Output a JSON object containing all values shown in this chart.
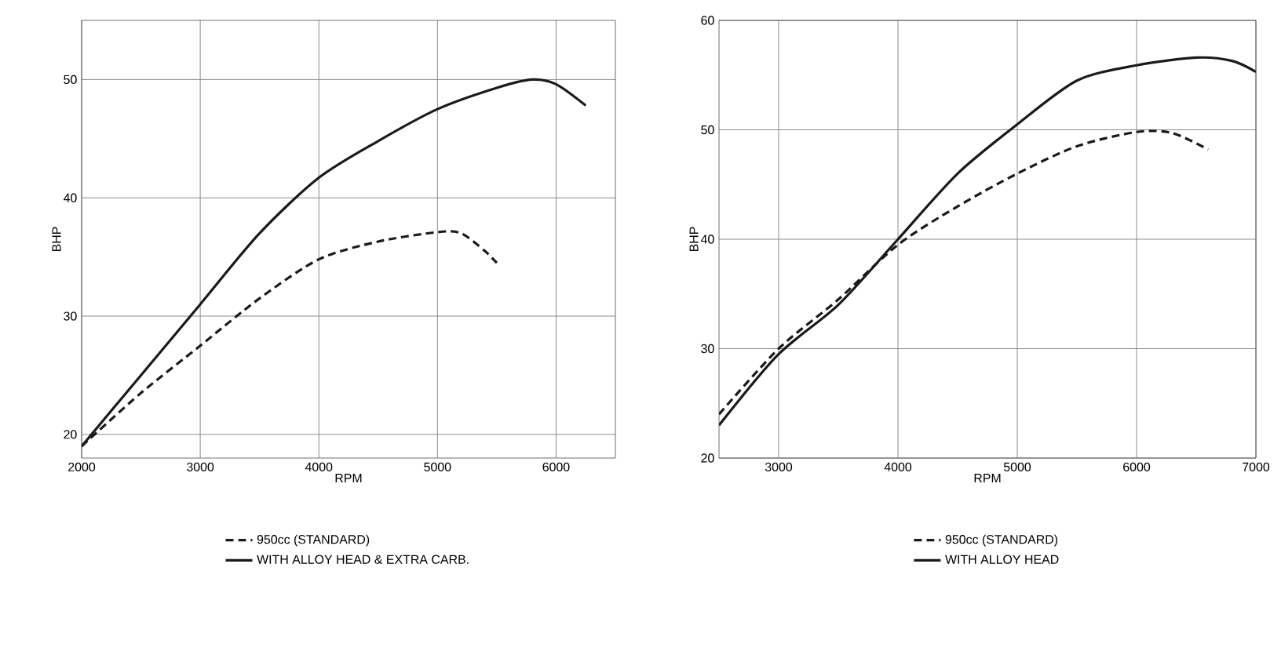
{
  "chart_data": [
    {
      "type": "line",
      "xlabel": "RPM",
      "ylabel": "BHP",
      "xlim": [
        2000,
        6500
      ],
      "ylim": [
        18,
        55
      ],
      "xticks": [
        2000,
        3000,
        4000,
        5000,
        6000
      ],
      "yticks": [
        20,
        30,
        40,
        50
      ],
      "grid": true,
      "legend": "bottom",
      "series": [
        {
          "name": "950cc (STANDARD)",
          "color": "#1a1a1a",
          "line_style": "dashed",
          "x": [
            2000,
            2500,
            3000,
            3500,
            4000,
            4500,
            5000,
            5200,
            5400,
            5500
          ],
          "values": [
            19,
            23.5,
            27.5,
            31.5,
            34.8,
            36.3,
            37.1,
            37,
            35.5,
            34.5
          ]
        },
        {
          "name": "WITH ALLOY HEAD & EXTRA CARB.",
          "color": "#1a1a1a",
          "line_style": "solid",
          "x": [
            2000,
            2500,
            3000,
            3500,
            4000,
            4500,
            5000,
            5500,
            5800,
            6000,
            6250
          ],
          "values": [
            19,
            25,
            31,
            37,
            41.7,
            44.8,
            47.5,
            49.3,
            50,
            49.6,
            47.8
          ]
        }
      ]
    },
    {
      "type": "line",
      "xlabel": "RPM",
      "ylabel": "BHP",
      "xlim": [
        2500,
        7000
      ],
      "ylim": [
        20,
        60
      ],
      "xticks": [
        3000,
        4000,
        5000,
        6000,
        7000
      ],
      "yticks": [
        20,
        30,
        40,
        50,
        60
      ],
      "grid": true,
      "legend": "bottom",
      "series": [
        {
          "name": "950cc (STANDARD)",
          "color": "#1a1a1a",
          "line_style": "dashed",
          "x": [
            2500,
            3000,
            3500,
            4000,
            4500,
            5000,
            5500,
            6000,
            6300,
            6600
          ],
          "values": [
            24,
            30,
            34.5,
            39.5,
            43,
            46,
            48.5,
            49.8,
            49.7,
            48.2
          ]
        },
        {
          "name": "WITH ALLOY HEAD",
          "color": "#1a1a1a",
          "line_style": "solid",
          "x": [
            2500,
            3000,
            3500,
            4000,
            4500,
            5000,
            5500,
            6000,
            6500,
            6800,
            7000
          ],
          "values": [
            23,
            29.5,
            34,
            40,
            46,
            50.5,
            54.5,
            55.9,
            56.6,
            56.3,
            55.3
          ]
        }
      ]
    }
  ]
}
